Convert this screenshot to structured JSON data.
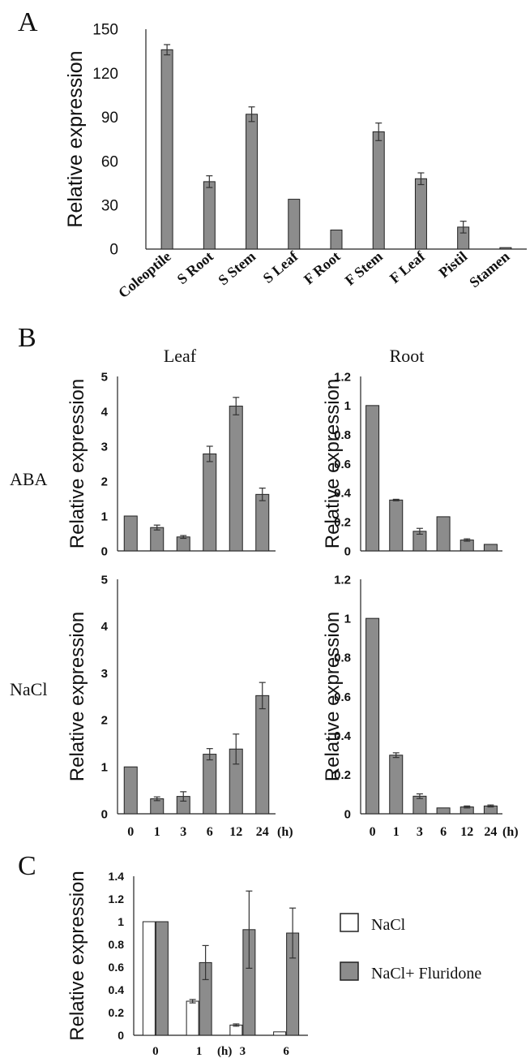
{
  "figure": {
    "panel_labels": [
      "A",
      "B",
      "C"
    ],
    "column_titles": [
      "Leaf",
      "Root"
    ],
    "row_labels": [
      "ABA",
      "NaCl"
    ],
    "time_unit": "(h)",
    "colors": {
      "bar": "#8c8c8c",
      "bar_alt": "#ffffff",
      "axis": "#222222",
      "error": "#333333"
    }
  },
  "chart_data": [
    {
      "id": "A",
      "type": "bar",
      "ylabel": "Relative expression",
      "ylim": [
        0,
        150
      ],
      "yticks": [
        "0",
        "30",
        "60",
        "90",
        "120",
        "150"
      ],
      "categories": [
        "Coleoptile",
        "S Root",
        "S Stem",
        "S Leaf",
        "F Root",
        "F Stem",
        "F Leaf",
        "Pistil",
        "Stamen"
      ],
      "values": [
        136,
        46,
        92,
        34,
        13,
        80,
        48,
        15,
        1
      ],
      "errors": [
        3.5,
        4,
        5,
        0,
        0,
        6,
        4,
        4,
        0
      ]
    },
    {
      "id": "B-ABA-Leaf",
      "type": "bar",
      "ylabel": "Relative expression",
      "ylim": [
        0,
        5
      ],
      "yticks": [
        "0",
        "1",
        "2",
        "3",
        "4",
        "5"
      ],
      "categories": [
        "0",
        "1",
        "3",
        "6",
        "12",
        "24"
      ],
      "values": [
        1.0,
        0.67,
        0.4,
        2.78,
        4.15,
        1.62
      ],
      "errors": [
        0,
        0.07,
        0.04,
        0.22,
        0.25,
        0.18
      ]
    },
    {
      "id": "B-ABA-Root",
      "type": "bar",
      "ylabel": "Relative expression",
      "ylim": [
        0,
        1.2
      ],
      "yticks": [
        "0",
        "0.2",
        "0.4",
        "0.6",
        "0.8",
        "1",
        "1.2"
      ],
      "categories": [
        "0",
        "1",
        "3",
        "6",
        "12",
        "24"
      ],
      "values": [
        1.0,
        0.35,
        0.135,
        0.235,
        0.075,
        0.045
      ],
      "errors": [
        0,
        0.005,
        0.02,
        0,
        0.008,
        0
      ]
    },
    {
      "id": "B-NaCl-Leaf",
      "type": "bar",
      "ylabel": "Relative expression",
      "ylim": [
        0,
        5
      ],
      "yticks": [
        "0",
        "1",
        "2",
        "3",
        "4",
        "5"
      ],
      "categories": [
        "0",
        "1",
        "3",
        "6",
        "12",
        "24"
      ],
      "xtick_labels": [
        "0",
        "1",
        "3",
        "6",
        "12",
        "24"
      ],
      "values": [
        1.0,
        0.32,
        0.37,
        1.27,
        1.38,
        2.52
      ],
      "errors": [
        0,
        0.04,
        0.1,
        0.12,
        0.32,
        0.28
      ]
    },
    {
      "id": "B-NaCl-Root",
      "type": "bar",
      "ylabel": "Relative expression",
      "ylim": [
        0,
        1.2
      ],
      "yticks": [
        "0",
        "0.2",
        "0.4",
        "0.6",
        "0.8",
        "1",
        "1.2"
      ],
      "categories": [
        "0",
        "1",
        "3",
        "6",
        "12",
        "24"
      ],
      "xtick_labels": [
        "0",
        "1",
        "3",
        "6",
        "12",
        "24"
      ],
      "values": [
        1.0,
        0.3,
        0.09,
        0.03,
        0.035,
        0.04
      ],
      "errors": [
        0,
        0.012,
        0.012,
        0,
        0.005,
        0.005
      ]
    },
    {
      "id": "C",
      "type": "bar",
      "ylabel": "Relative expression",
      "ylim": [
        0,
        1.4
      ],
      "yticks": [
        "0",
        "0.2",
        "0.4",
        "0.6",
        "0.8",
        "1",
        "1.2",
        "1.4"
      ],
      "categories": [
        "0",
        "1",
        "3",
        "6"
      ],
      "xtick_labels": [
        "0",
        "1",
        "3",
        "6"
      ],
      "series": [
        {
          "name": "NaCl",
          "values": [
            1.0,
            0.3,
            0.09,
            0.03
          ],
          "errors": [
            0,
            0.015,
            0.01,
            0
          ]
        },
        {
          "name": "NaCl+ Fluridone",
          "values": [
            1.0,
            0.64,
            0.93,
            0.9
          ],
          "errors": [
            0,
            0.15,
            0.34,
            0.22
          ]
        }
      ]
    }
  ]
}
